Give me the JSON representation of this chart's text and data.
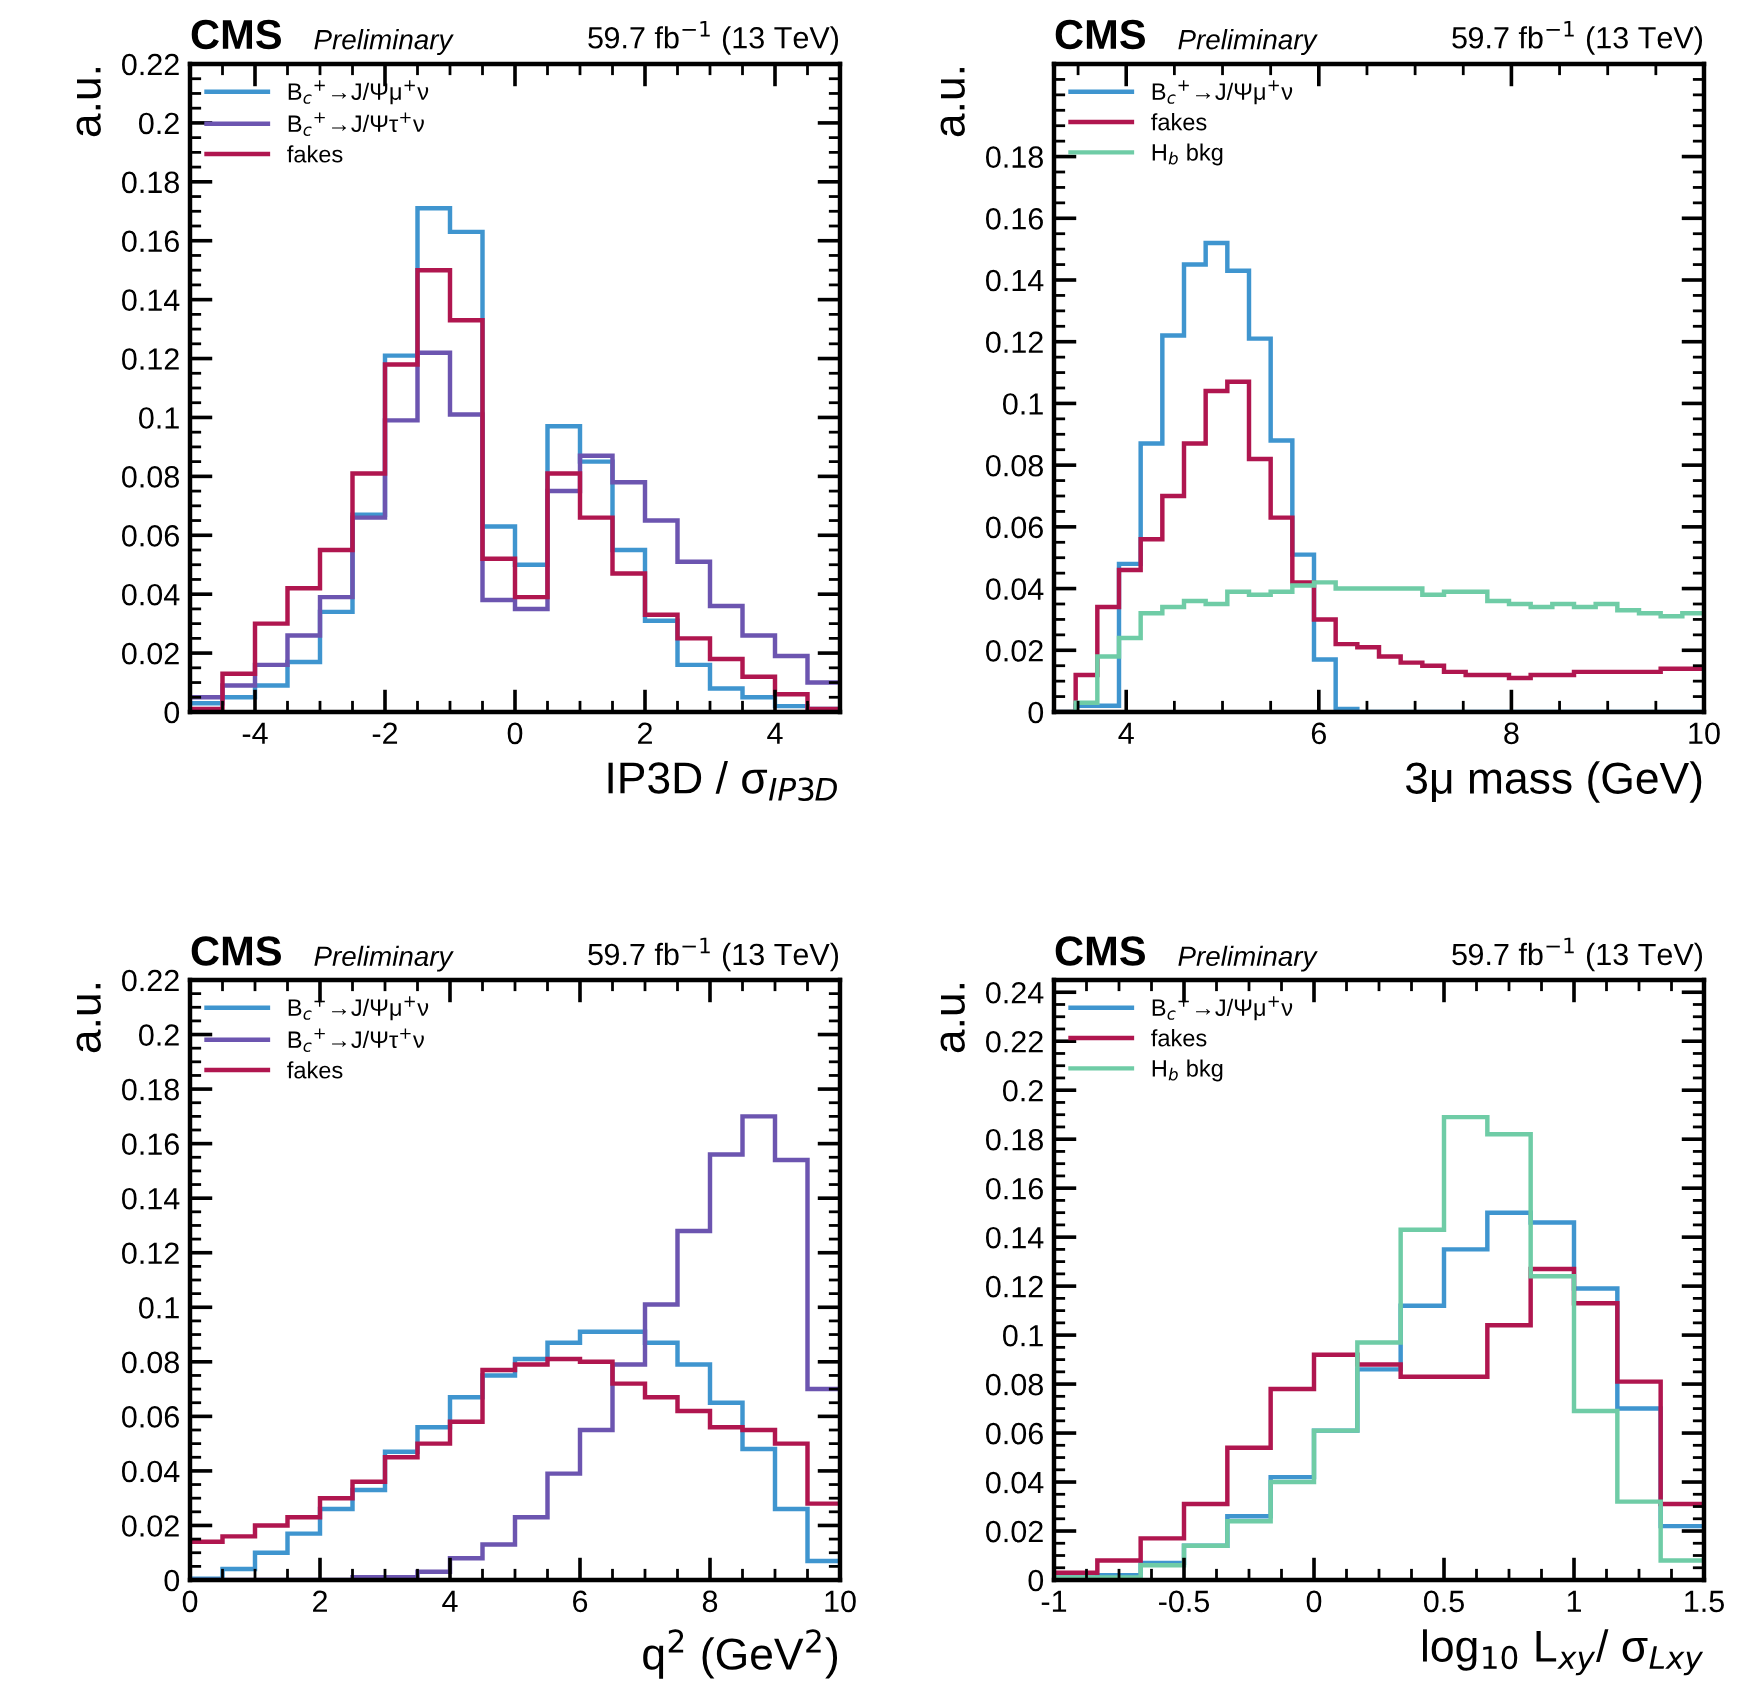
{
  "chart_data": [
    {
      "type": "histogram",
      "title": "CMS",
      "subtitle": "Preliminary",
      "annotations": [
        "59.7 fb$^{−1}$ (13 TeV)"
      ],
      "xlabel": "IP3D / σ$_{IP3D}$",
      "ylabel": "a.u.",
      "legend": "top left",
      "xlim": [
        -5,
        5
      ],
      "xticks": [
        -4,
        -2,
        0,
        2,
        4
      ],
      "ylim": [
        0,
        0.22
      ],
      "yticks": [
        0,
        0.02,
        0.04,
        0.06,
        0.08,
        0.1,
        0.12,
        0.14,
        0.16,
        0.18,
        0.2,
        0.22
      ],
      "bins": [
        -5,
        -4.5,
        -4,
        -3.5,
        -3,
        -2.5,
        -2,
        -1.5,
        -1,
        -0.5,
        0,
        0.5,
        1,
        1.5,
        2,
        2.5,
        3,
        3.5,
        4,
        4.5,
        5
      ],
      "series": [
        {
          "name": "B$_{c}$$^{+}$→J/Ψμ$^{+}$ν",
          "color": "#3f95cf",
          "values": [
            0.003,
            0.005,
            0.009,
            0.017,
            0.034,
            0.067,
            0.121,
            0.171,
            0.163,
            0.063,
            0.05,
            0.097,
            0.085,
            0.055,
            0.031,
            0.016,
            0.008,
            0.005,
            0.002,
            0.001
          ]
        },
        {
          "name": "B$_{c}$$^{+}$→J/Ψτ$^{+}$ν",
          "color": "#6c55b0",
          "values": [
            0.005,
            0.009,
            0.016,
            0.026,
            0.039,
            0.066,
            0.099,
            0.122,
            0.101,
            0.038,
            0.035,
            0.075,
            0.087,
            0.078,
            0.065,
            0.051,
            0.036,
            0.026,
            0.019,
            0.01
          ]
        },
        {
          "name": "fakes",
          "color": "#b0164f",
          "values": [
            0.001,
            0.013,
            0.03,
            0.042,
            0.055,
            0.081,
            0.118,
            0.15,
            0.133,
            0.052,
            0.039,
            0.081,
            0.066,
            0.047,
            0.033,
            0.025,
            0.018,
            0.012,
            0.006,
            0.001
          ]
        }
      ]
    },
    {
      "type": "histogram",
      "title": "CMS",
      "subtitle": "Preliminary",
      "annotations": [
        "59.7 fb$^{−1}$ (13 TeV)"
      ],
      "xlabel": "3μ mass (GeV)",
      "ylabel": "a.u.",
      "legend": "top left",
      "xlim": [
        3.25,
        10
      ],
      "xticks": [
        4,
        6,
        8,
        10
      ],
      "ylim": [
        0,
        0.21
      ],
      "yticks": [
        0,
        0.02,
        0.04,
        0.06,
        0.08,
        0.1,
        0.12,
        0.14,
        0.16,
        0.18
      ],
      "bins": [
        3.25,
        3.475,
        3.7,
        3.925,
        4.15,
        4.375,
        4.6,
        4.825,
        5.05,
        5.275,
        5.5,
        5.725,
        5.95,
        6.175,
        6.4,
        6.625,
        6.85,
        7.075,
        7.3,
        7.525,
        7.75,
        7.975,
        8.2,
        8.425,
        8.65,
        8.875,
        9.1,
        9.325,
        9.55,
        9.775,
        10
      ],
      "series": [
        {
          "name": "B$_{c}$$^{+}$→J/Ψμ$^{+}$ν",
          "color": "#3f95cf",
          "values": [
            0,
            0.002,
            0.002,
            0.048,
            0.087,
            0.122,
            0.145,
            0.152,
            0.143,
            0.121,
            0.088,
            0.051,
            0.017,
            0.001,
            0,
            0,
            0,
            0,
            0,
            0,
            0,
            0,
            0,
            0,
            0,
            0,
            0,
            0,
            0,
            0
          ]
        },
        {
          "name": "fakes",
          "color": "#b0164f",
          "values": [
            0,
            0.012,
            0.034,
            0.046,
            0.056,
            0.07,
            0.087,
            0.104,
            0.107,
            0.082,
            0.063,
            0.042,
            0.03,
            0.022,
            0.021,
            0.018,
            0.016,
            0.015,
            0.013,
            0.012,
            0.012,
            0.011,
            0.012,
            0.012,
            0.013,
            0.013,
            0.013,
            0.013,
            0.014,
            0.014
          ]
        },
        {
          "name": "H$_{b}$ bkg",
          "color": "#6fcca6",
          "values": [
            0,
            0.003,
            0.018,
            0.024,
            0.032,
            0.034,
            0.036,
            0.035,
            0.039,
            0.038,
            0.039,
            0.041,
            0.042,
            0.04,
            0.04,
            0.04,
            0.04,
            0.038,
            0.039,
            0.039,
            0.036,
            0.035,
            0.034,
            0.035,
            0.034,
            0.035,
            0.033,
            0.032,
            0.031,
            0.032
          ]
        }
      ]
    },
    {
      "type": "histogram",
      "title": "CMS",
      "subtitle": "Preliminary",
      "annotations": [
        "59.7 fb$^{−1}$ (13 TeV)"
      ],
      "xlabel": "q$^{2}$ (GeV$^{2}$)",
      "ylabel": "a.u.",
      "legend": "top left",
      "xlim": [
        0,
        10
      ],
      "xticks": [
        0,
        2,
        4,
        6,
        8,
        10
      ],
      "ylim": [
        0,
        0.22
      ],
      "yticks": [
        0,
        0.02,
        0.04,
        0.06,
        0.08,
        0.1,
        0.12,
        0.14,
        0.16,
        0.18,
        0.2,
        0.22
      ],
      "bins": [
        0,
        0.5,
        1,
        1.5,
        2,
        2.5,
        3,
        3.5,
        4,
        4.5,
        5,
        5.5,
        6,
        6.5,
        7,
        7.5,
        8,
        8.5,
        9,
        9.5,
        10
      ],
      "series": [
        {
          "name": "B$_{c}$$^{+}$→J/Ψμ$^{+}$ν",
          "color": "#3f95cf",
          "values": [
            0.0005,
            0.004,
            0.01,
            0.017,
            0.026,
            0.033,
            0.047,
            0.056,
            0.067,
            0.075,
            0.081,
            0.087,
            0.091,
            0.091,
            0.087,
            0.079,
            0.065,
            0.048,
            0.026,
            0.007
          ]
        },
        {
          "name": "B$_{c}$$^{+}$→J/Ψτ$^{+}$ν",
          "color": "#6c55b0",
          "values": [
            0,
            0,
            0,
            0,
            0,
            0.001,
            0.001,
            0.003,
            0.008,
            0.013,
            0.023,
            0.039,
            0.055,
            0.079,
            0.101,
            0.128,
            0.156,
            0.17,
            0.154,
            0.07
          ]
        },
        {
          "name": "fakes",
          "color": "#b0164f",
          "values": [
            0.014,
            0.016,
            0.02,
            0.023,
            0.03,
            0.036,
            0.045,
            0.05,
            0.058,
            0.077,
            0.079,
            0.081,
            0.08,
            0.072,
            0.067,
            0.062,
            0.056,
            0.055,
            0.05,
            0.028
          ]
        }
      ]
    },
    {
      "type": "histogram",
      "title": "CMS",
      "subtitle": "Preliminary",
      "annotations": [
        "59.7 fb$^{−1}$ (13 TeV)"
      ],
      "xlabel": "log$_{10}$ L$_{xy}$/ σ$_{Lxy}$",
      "ylabel": "a.u.",
      "legend": "top left",
      "xlim": [
        -1,
        1.5
      ],
      "xticks": [
        -1,
        -0.5,
        0,
        0.5,
        1,
        1.5
      ],
      "ylim": [
        0,
        0.245
      ],
      "yticks": [
        0,
        0.02,
        0.04,
        0.06,
        0.08,
        0.1,
        0.12,
        0.14,
        0.16,
        0.18,
        0.2,
        0.22,
        0.24
      ],
      "bins": [
        -1,
        -0.8333,
        -0.6667,
        -0.5,
        -0.3333,
        -0.1667,
        0,
        0.1667,
        0.3333,
        0.5,
        0.6667,
        0.8333,
        1,
        1.1667,
        1.3333,
        1.5
      ],
      "series": [
        {
          "name": "B$_{c}$$^{+}$→J/Ψμ$^{+}$ν",
          "color": "#3f95cf",
          "values": [
            0.001,
            0.002,
            0.007,
            0.014,
            0.026,
            0.042,
            0.061,
            0.086,
            0.112,
            0.135,
            0.15,
            0.146,
            0.119,
            0.07,
            0.022
          ]
        },
        {
          "name": "fakes",
          "color": "#b0164f",
          "values": [
            0.003,
            0.008,
            0.017,
            0.031,
            0.054,
            0.078,
            0.092,
            0.088,
            0.083,
            0.083,
            0.104,
            0.127,
            0.113,
            0.081,
            0.031
          ]
        },
        {
          "name": "H$_{b}$ bkg",
          "color": "#6fcca6",
          "values": [
            0.001,
            0.001,
            0.006,
            0.014,
            0.024,
            0.04,
            0.061,
            0.097,
            0.143,
            0.189,
            0.182,
            0.124,
            0.069,
            0.032,
            0.008
          ]
        }
      ]
    }
  ]
}
